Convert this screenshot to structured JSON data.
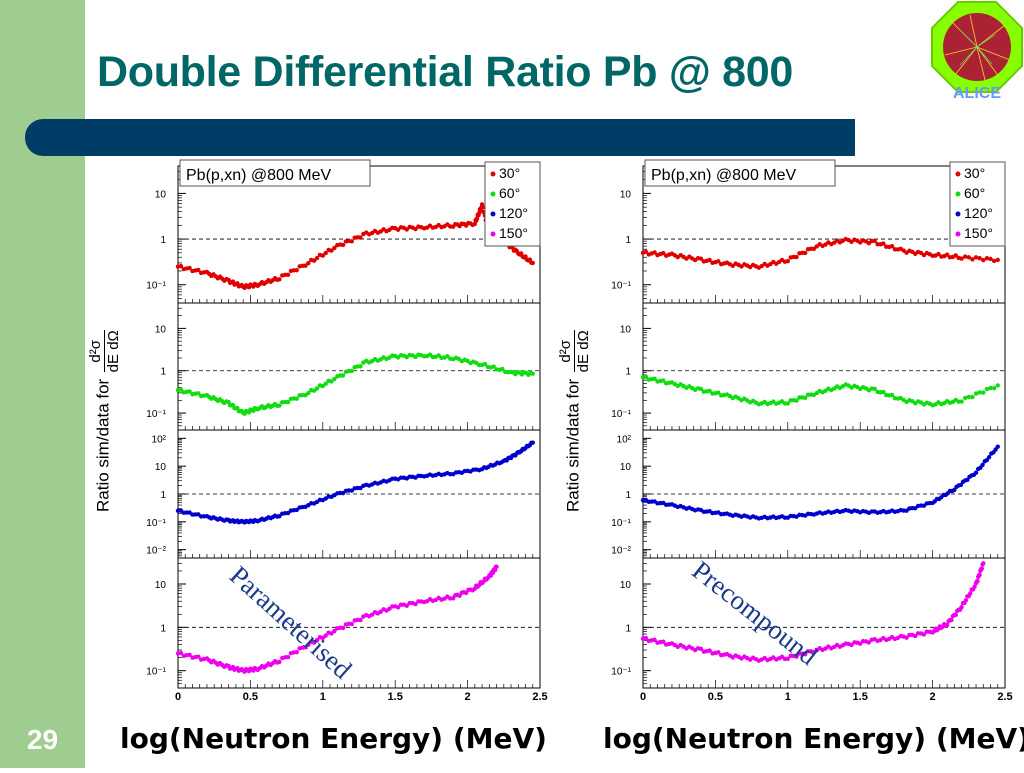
{
  "slide": {
    "title": "Double Differential Ratio Pb @ 800",
    "page_number": "29",
    "logo_text": "ALICE",
    "colors": {
      "sidebar": "#9fcc8f",
      "title": "#006666",
      "title_bar": "#003d66"
    }
  },
  "chart_data": [
    {
      "type": "scatter",
      "panel": "left",
      "annotation": "Parameterised",
      "box_title": "Pb(p,xn) @800 MeV",
      "legend": [
        "30°",
        "60°",
        "120°",
        "150°"
      ],
      "legend_placement": "top-right",
      "xlabel": "log(Neutron Energy) (MeV)",
      "ylabel_prefix": "Ratio sim/data for",
      "ylabel_fraction": {
        "numerator": "d²σ",
        "denominator": "dE dΩ"
      },
      "xlim": [
        0,
        2.5
      ],
      "xticks": [
        "0",
        "0.5",
        "1",
        "1.5",
        "2",
        "2.5"
      ],
      "yscale": "log",
      "series": [
        {
          "name": "30°",
          "color": "#e00000",
          "ylim_exp": [
            -1.4,
            1.6
          ],
          "yticks": [
            [
              "10",
              1
            ],
            [
              "1",
              0
            ],
            [
              "10⁻¹",
              -1
            ]
          ],
          "x": [
            0,
            0.2,
            0.35,
            0.45,
            0.55,
            0.7,
            0.9,
            1.1,
            1.3,
            1.5,
            1.7,
            1.9,
            2.05,
            2.1,
            2.15,
            2.25,
            2.35,
            2.45
          ],
          "y": [
            0.25,
            0.18,
            0.12,
            0.09,
            0.1,
            0.14,
            0.3,
            0.7,
            1.3,
            1.7,
            1.8,
            2.0,
            2.2,
            5.5,
            1.4,
            0.9,
            0.5,
            0.3
          ]
        },
        {
          "name": "60°",
          "color": "#10dd10",
          "ylim_exp": [
            -1.4,
            1.6
          ],
          "yticks": [
            [
              "10",
              1
            ],
            [
              "1",
              0
            ],
            [
              "10⁻¹",
              -1
            ]
          ],
          "x": [
            0,
            0.2,
            0.35,
            0.45,
            0.55,
            0.7,
            0.9,
            1.1,
            1.3,
            1.5,
            1.7,
            1.9,
            2.1,
            2.3,
            2.45
          ],
          "y": [
            0.35,
            0.25,
            0.17,
            0.1,
            0.13,
            0.16,
            0.3,
            0.7,
            1.6,
            2.2,
            2.3,
            2.0,
            1.4,
            0.9,
            0.85
          ]
        },
        {
          "name": "120°",
          "color": "#0000cc",
          "ylim_exp": [
            -2.3,
            2.3
          ],
          "yticks": [
            [
              "10²",
              2
            ],
            [
              "10",
              1
            ],
            [
              "1",
              0
            ],
            [
              "10⁻¹",
              -1
            ],
            [
              "10⁻²",
              -2
            ]
          ],
          "x": [
            0,
            0.2,
            0.35,
            0.45,
            0.55,
            0.7,
            0.9,
            1.1,
            1.3,
            1.5,
            1.7,
            1.9,
            2.1,
            2.25,
            2.35,
            2.45
          ],
          "y": [
            0.25,
            0.15,
            0.11,
            0.1,
            0.11,
            0.17,
            0.4,
            1.0,
            2.0,
            3.5,
            4.5,
            5.5,
            8,
            15,
            30,
            70
          ]
        },
        {
          "name": "150°",
          "color": "#ee00ee",
          "ylim_exp": [
            -1.4,
            1.6
          ],
          "yticks": [
            [
              "10",
              1
            ],
            [
              "1",
              0
            ],
            [
              "10⁻¹",
              -1
            ]
          ],
          "x": [
            0,
            0.2,
            0.35,
            0.45,
            0.55,
            0.7,
            0.9,
            1.1,
            1.3,
            1.5,
            1.7,
            1.9,
            2.05,
            2.15,
            2.2
          ],
          "y": [
            0.25,
            0.18,
            0.12,
            0.1,
            0.11,
            0.17,
            0.4,
            0.9,
            1.8,
            3.0,
            4.0,
            5.0,
            8.0,
            15,
            25
          ]
        }
      ]
    },
    {
      "type": "scatter",
      "panel": "right",
      "annotation": "Precompound",
      "box_title": "Pb(p,xn) @800 MeV",
      "legend": [
        "30°",
        "60°",
        "120°",
        "150°"
      ],
      "legend_placement": "top-right",
      "xlabel": "log(Neutron Energy) (MeV)",
      "ylabel_prefix": "Ratio sim/data for",
      "ylabel_fraction": {
        "numerator": "d²σ",
        "denominator": "dE dΩ"
      },
      "xlim": [
        0,
        2.5
      ],
      "xticks": [
        "0",
        "0.5",
        "1",
        "1.5",
        "2",
        "2.5"
      ],
      "yscale": "log",
      "series": [
        {
          "name": "30°",
          "color": "#e00000",
          "ylim_exp": [
            -1.4,
            1.6
          ],
          "yticks": [
            [
              "10",
              1
            ],
            [
              "1",
              0
            ],
            [
              "10⁻¹",
              -1
            ]
          ],
          "x": [
            0,
            0.2,
            0.4,
            0.6,
            0.8,
            1.0,
            1.2,
            1.4,
            1.6,
            1.8,
            2.0,
            2.2,
            2.45
          ],
          "y": [
            0.5,
            0.45,
            0.35,
            0.28,
            0.25,
            0.35,
            0.7,
            0.95,
            0.85,
            0.55,
            0.45,
            0.4,
            0.35
          ]
        },
        {
          "name": "60°",
          "color": "#10dd10",
          "ylim_exp": [
            -1.4,
            1.6
          ],
          "yticks": [
            [
              "10",
              1
            ],
            [
              "1",
              0
            ],
            [
              "10⁻¹",
              -1
            ]
          ],
          "x": [
            0,
            0.2,
            0.4,
            0.6,
            0.8,
            1.0,
            1.2,
            1.4,
            1.6,
            1.8,
            2.0,
            2.2,
            2.45
          ],
          "y": [
            0.7,
            0.5,
            0.35,
            0.25,
            0.17,
            0.18,
            0.3,
            0.45,
            0.35,
            0.2,
            0.16,
            0.2,
            0.45
          ]
        },
        {
          "name": "120°",
          "color": "#0000cc",
          "ylim_exp": [
            -2.3,
            2.3
          ],
          "yticks": [
            [
              "10²",
              2
            ],
            [
              "10",
              1
            ],
            [
              "1",
              0
            ],
            [
              "10⁻¹",
              -1
            ],
            [
              "10⁻²",
              -2
            ]
          ],
          "x": [
            0,
            0.2,
            0.4,
            0.6,
            0.8,
            1.0,
            1.2,
            1.4,
            1.6,
            1.8,
            2.0,
            2.15,
            2.3,
            2.45
          ],
          "y": [
            0.6,
            0.4,
            0.25,
            0.18,
            0.14,
            0.15,
            0.2,
            0.25,
            0.22,
            0.25,
            0.5,
            1.5,
            6,
            50
          ]
        },
        {
          "name": "150°",
          "color": "#ee00ee",
          "ylim_exp": [
            -1.4,
            1.6
          ],
          "yticks": [
            [
              "10",
              1
            ],
            [
              "1",
              0
            ],
            [
              "10⁻¹",
              -1
            ]
          ],
          "x": [
            0,
            0.2,
            0.4,
            0.6,
            0.8,
            1.0,
            1.2,
            1.4,
            1.6,
            1.8,
            2.0,
            2.1,
            2.2,
            2.3,
            2.35
          ],
          "y": [
            0.55,
            0.4,
            0.3,
            0.22,
            0.18,
            0.2,
            0.3,
            0.4,
            0.5,
            0.6,
            0.8,
            1.2,
            3.0,
            10,
            30
          ]
        }
      ]
    }
  ]
}
